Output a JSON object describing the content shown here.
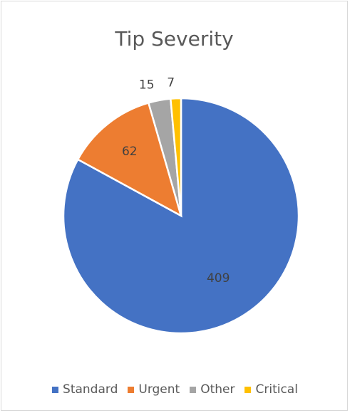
{
  "chart_data": {
    "type": "pie",
    "title": "Tip Severity",
    "categories": [
      "Standard",
      "Urgent",
      "Other",
      "Critical"
    ],
    "values": [
      409,
      62,
      15,
      7
    ],
    "colors": [
      "#4472c4",
      "#ed7d31",
      "#a5a5a5",
      "#ffc000"
    ],
    "data_labels": [
      "409",
      "62",
      "15",
      "7"
    ],
    "legend_position": "bottom"
  }
}
